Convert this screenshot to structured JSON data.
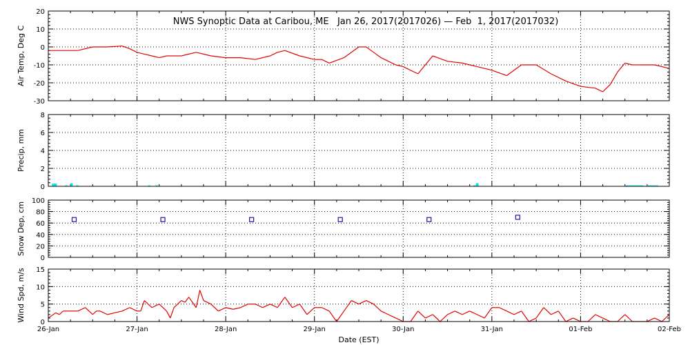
{
  "chart_data": {
    "title": "NWS Synoptic Data at Caribou, ME   Jan 26, 2017(2017026) — Feb  1, 2017(2017032)",
    "xlabel": "Date (EST)",
    "x_ticks": [
      "26-Jan",
      "27-Jan",
      "28-Jan",
      "29-Jan",
      "30-Jan",
      "31-Jan",
      "01-Feb",
      "02-Feb"
    ],
    "x_range_hours": [
      0,
      168
    ],
    "grid": "dotted vertical lines at day boundaries, dotted horizontal lines at major y ticks",
    "panels": [
      {
        "id": "air-temp",
        "type": "line",
        "ylabel": "Air Temp, Deg C",
        "ylim": [
          -30,
          20
        ],
        "y_ticks": [
          20,
          10,
          0,
          -10,
          -20,
          -30
        ],
        "color": "#e00000",
        "x": [
          0,
          4,
          8,
          12,
          16,
          20,
          22,
          24,
          26,
          28,
          30,
          32,
          34,
          36,
          40,
          44,
          48,
          52,
          56,
          60,
          62,
          64,
          68,
          72,
          74,
          76,
          80,
          84,
          86,
          88,
          90,
          92,
          94,
          96,
          100,
          104,
          108,
          112,
          114,
          116,
          120,
          124,
          128,
          132,
          136,
          140,
          144,
          148,
          150,
          152,
          154,
          156,
          158,
          160,
          164,
          168
        ],
        "y": [
          -2,
          -2,
          -2,
          0,
          0,
          0.5,
          -1,
          -3,
          -4,
          -5,
          -6,
          -5,
          -5,
          -5,
          -3,
          -5,
          -6,
          -6,
          -7,
          -5,
          -3,
          -2,
          -5,
          -7,
          -7,
          -9,
          -6,
          0,
          0,
          -3,
          -6,
          -8,
          -10,
          -11,
          -15,
          -5,
          -8,
          -9,
          -10,
          -11,
          -13,
          -16,
          -10,
          -10,
          -15,
          -19,
          -22,
          -23,
          -25,
          -21,
          -14,
          -9,
          -10,
          -10,
          -10,
          -12
        ]
      },
      {
        "id": "precip",
        "type": "bar",
        "ylabel": "Precip, mm",
        "ylim": [
          0,
          8
        ],
        "y_ticks": [
          8,
          6,
          4,
          2,
          0
        ],
        "color": "#00e5ee",
        "bars": [
          {
            "x0": 1.0,
            "x1": 1.6,
            "value": 0.3
          },
          {
            "x0": 1.6,
            "x1": 2.3,
            "value": 0.3
          },
          {
            "x0": 4.5,
            "x1": 5.2,
            "value": 0.1
          },
          {
            "x0": 6.0,
            "x1": 6.6,
            "value": 0.35
          },
          {
            "x0": 7.5,
            "x1": 8.2,
            "value": 0.1
          },
          {
            "x0": 27.0,
            "x1": 27.6,
            "value": 0.1
          },
          {
            "x0": 29.0,
            "x1": 29.6,
            "value": 0.1
          },
          {
            "x0": 115.0,
            "x1": 115.7,
            "value": 0.1
          },
          {
            "x0": 115.7,
            "x1": 116.4,
            "value": 0.35
          },
          {
            "x0": 156.0,
            "x1": 161.0,
            "value": 0.1
          },
          {
            "x0": 162.0,
            "x1": 165.0,
            "value": 0.1
          }
        ]
      },
      {
        "id": "snow-depth",
        "type": "scatter",
        "ylabel": "Snow Dep, cm",
        "ylim": [
          0,
          100
        ],
        "y_ticks": [
          100,
          80,
          60,
          40,
          20,
          0
        ],
        "color": "#1a1aa6",
        "x": [
          7,
          31,
          55,
          79,
          103,
          127
        ],
        "y": [
          66,
          66,
          66,
          66,
          66,
          70
        ]
      },
      {
        "id": "wind-speed",
        "type": "line",
        "ylabel": "Wind Spd, m/s",
        "ylim": [
          0,
          15
        ],
        "y_ticks": [
          15,
          10,
          5,
          0
        ],
        "color": "#e00000",
        "x": [
          0,
          2,
          3,
          4,
          6,
          8,
          10,
          12,
          13,
          14,
          16,
          18,
          20,
          22,
          24,
          25,
          26,
          28,
          30,
          32,
          33,
          34,
          36,
          37,
          38,
          40,
          41,
          42,
          44,
          46,
          48,
          50,
          52,
          54,
          56,
          58,
          60,
          62,
          64,
          66,
          68,
          70,
          72,
          74,
          76,
          78,
          80,
          82,
          84,
          86,
          88,
          90,
          92,
          94,
          96,
          98,
          100,
          102,
          104,
          106,
          108,
          110,
          112,
          114,
          116,
          118,
          120,
          122,
          124,
          126,
          128,
          130,
          132,
          134,
          136,
          138,
          140,
          142,
          144,
          146,
          148,
          150,
          152,
          154,
          156,
          158,
          160,
          162,
          164,
          166,
          168
        ],
        "y": [
          1,
          2.5,
          2,
          3,
          3,
          3,
          4,
          2,
          3,
          3,
          2,
          2.5,
          3,
          4,
          3,
          3,
          6,
          4,
          5,
          3,
          1,
          4,
          6,
          5.5,
          7,
          4,
          9,
          6,
          5,
          3,
          4,
          3.5,
          4,
          5,
          5,
          4,
          5,
          4,
          7,
          4,
          5,
          2,
          4,
          4,
          3,
          0,
          3,
          6,
          5,
          6,
          5,
          3,
          2,
          1,
          0,
          0,
          3,
          1,
          2,
          0,
          2,
          3,
          2,
          3,
          2,
          1,
          4,
          4,
          3,
          2,
          3,
          0,
          1,
          4,
          2,
          3,
          0,
          1,
          0,
          0,
          2,
          1,
          0,
          0,
          2,
          0,
          0,
          0,
          1,
          0,
          2
        ]
      }
    ]
  }
}
